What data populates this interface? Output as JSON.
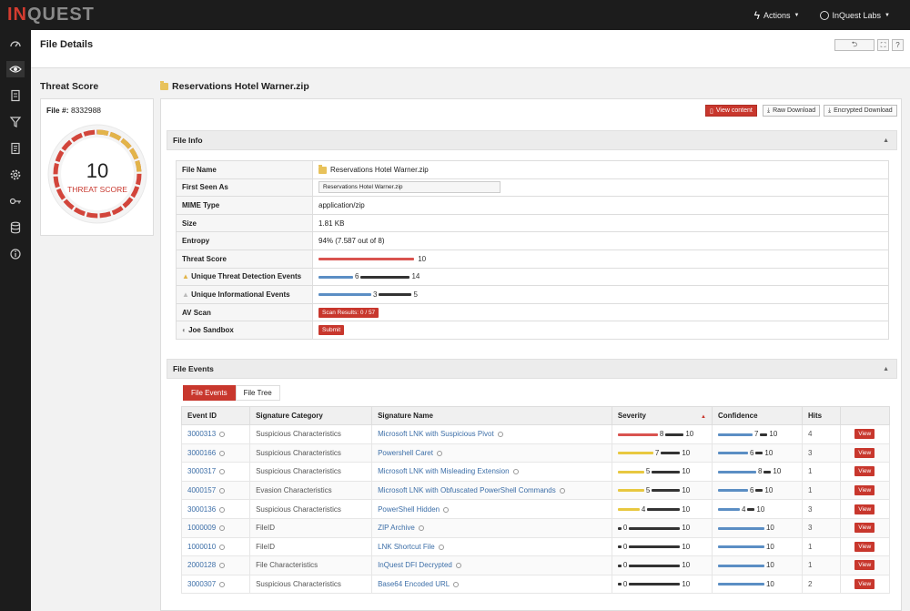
{
  "brand": {
    "logo_in": "IN",
    "logo_rest": "QUEST"
  },
  "topbar": {
    "actions": "Actions",
    "labs": "InQuest Labs"
  },
  "header": {
    "title": "File Details"
  },
  "threat": {
    "title": "Threat Score",
    "file_label": "File #:",
    "file_number": "8332988",
    "score": "10",
    "score_label": "THREAT SCORE",
    "score_fraction": 1.0
  },
  "file": {
    "name": "Reservations Hotel Warner.zip"
  },
  "actions": {
    "view": "View content",
    "raw": "Raw Download",
    "encrypted": "Encrypted Download"
  },
  "file_info": {
    "section_title": "File Info",
    "labels": {
      "file_name": "File Name",
      "first_seen": "First Seen As",
      "mime": "MIME Type",
      "size": "Size",
      "entropy": "Entropy",
      "threat_score": "Threat Score",
      "unique_threat": "Unique Threat Detection Events",
      "unique_info": "Unique Informational Events",
      "av_scan": "AV Scan",
      "joe": "Joe Sandbox"
    },
    "values": {
      "file_name": "Reservations Hotel Warner.zip",
      "first_seen": "Reservations Hotel Warner.zip",
      "mime": "application/zip",
      "size": "1.81 KB",
      "entropy": "94% (7.587 out of 8)",
      "threat_score": "10",
      "unique_threat_a": "6",
      "unique_threat_b": "14",
      "unique_info_a": "3",
      "unique_info_b": "5",
      "av_scan": "Scan Results: 0 / 57",
      "joe": "Submit"
    }
  },
  "file_events": {
    "section_title": "File Events",
    "tabs": [
      "File Events",
      "File Tree"
    ],
    "columns": [
      "Event ID",
      "Signature Category",
      "Signature Name",
      "Severity",
      "Confidence",
      "Hits"
    ],
    "view_label": "View",
    "rows": [
      {
        "id": "3000313",
        "category": "Suspicious Characteristics",
        "name": "Microsoft LNK with Suspicious Pivot",
        "sev": "8",
        "sev_max": "10",
        "sev_color": "#d9534f",
        "conf": "7",
        "conf_max": "10",
        "hits": "4"
      },
      {
        "id": "3000166",
        "category": "Suspicious Characteristics",
        "name": "Powershell Caret",
        "sev": "7",
        "sev_max": "10",
        "sev_color": "#e8c840",
        "conf": "6",
        "conf_max": "10",
        "hits": "3"
      },
      {
        "id": "3000317",
        "category": "Suspicious Characteristics",
        "name": "Microsoft LNK with Misleading Extension",
        "sev": "5",
        "sev_max": "10",
        "sev_color": "#e8c840",
        "conf": "8",
        "conf_max": "10",
        "hits": "1"
      },
      {
        "id": "4000157",
        "category": "Evasion Characteristics",
        "name": "Microsoft LNK with Obfuscated PowerShell Commands",
        "sev": "5",
        "sev_max": "10",
        "sev_color": "#e8c840",
        "conf": "6",
        "conf_max": "10",
        "hits": "1"
      },
      {
        "id": "3000136",
        "category": "Suspicious Characteristics",
        "name": "PowerShell Hidden",
        "sev": "4",
        "sev_max": "10",
        "sev_color": "#e8c840",
        "conf": "4",
        "conf_max": "10",
        "hits": "3"
      },
      {
        "id": "1000009",
        "category": "FileID",
        "name": "ZIP Archive",
        "sev": "0",
        "sev_max": "10",
        "sev_color": "#333333",
        "conf": "10",
        "conf_max": "",
        "hits": "3"
      },
      {
        "id": "1000010",
        "category": "FileID",
        "name": "LNK Shortcut File",
        "sev": "0",
        "sev_max": "10",
        "sev_color": "#333333",
        "conf": "10",
        "conf_max": "",
        "hits": "1"
      },
      {
        "id": "2000128",
        "category": "File Characteristics",
        "name": "InQuest DFI Decrypted",
        "sev": "0",
        "sev_max": "10",
        "sev_color": "#333333",
        "conf": "10",
        "conf_max": "",
        "hits": "1"
      },
      {
        "id": "3000307",
        "category": "Suspicious Characteristics",
        "name": "Base64 Encoded URL",
        "sev": "0",
        "sev_max": "10",
        "sev_color": "#333333",
        "conf": "10",
        "conf_max": "",
        "hits": "2"
      }
    ]
  },
  "colors": {
    "accent": "#c8372d",
    "link": "#3d6fa8",
    "conf_bar": "#5b8ec4",
    "bar_dark": "#333333"
  }
}
